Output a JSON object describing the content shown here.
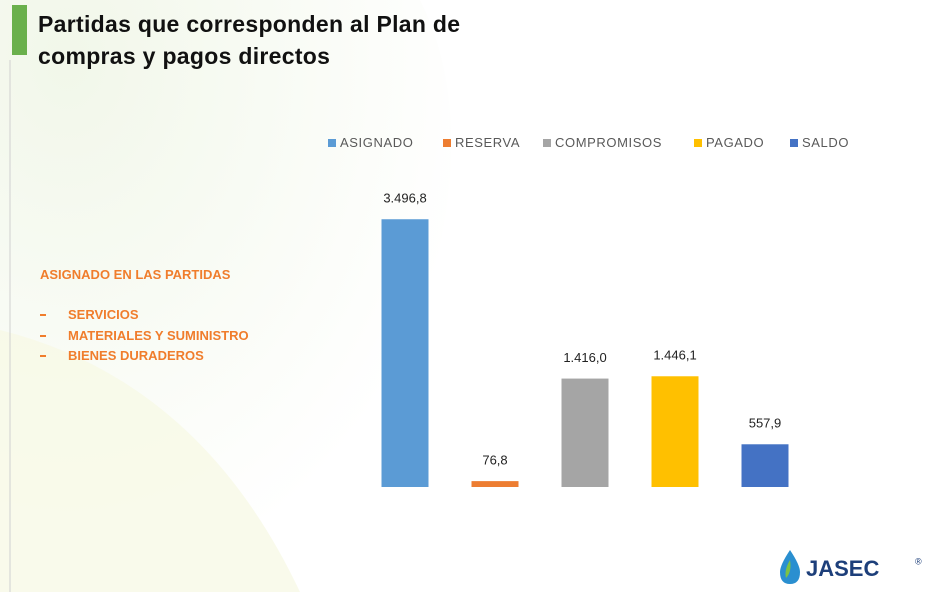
{
  "chart_data": {
    "type": "bar",
    "title": "Partidas que corresponden al Plan de compras y pagos directos",
    "annotations": [
      "ASIGNADO EN LAS PARTIDAS",
      "SERVICIOS",
      "MATERIALES Y SUMINISTRO",
      "BIENES DURADEROS"
    ],
    "logo": "JASEC",
    "logo_mark": "®",
    "series": [
      {
        "name": "ASIGNADO",
        "color": "#5b9bd5",
        "values": [
          3496.8
        ],
        "value_labels": [
          "3.496,8"
        ]
      },
      {
        "name": "RESERVA",
        "color": "#ed7d31",
        "values": [
          76.8
        ],
        "value_labels": [
          "76,8"
        ]
      },
      {
        "name": "COMPROMISOS",
        "color": "#a5a5a5",
        "values": [
          1416.0
        ],
        "value_labels": [
          "1.416,0"
        ]
      },
      {
        "name": "PAGADO",
        "color": "#ffc000",
        "values": [
          1446.1
        ],
        "value_labels": [
          "1.446,1"
        ]
      },
      {
        "name": "SALDO",
        "color": "#4472c4",
        "values": [
          557.9
        ],
        "value_labels": [
          "557,9"
        ]
      }
    ],
    "ylim": [
      0,
      3500
    ],
    "legend": "top"
  }
}
